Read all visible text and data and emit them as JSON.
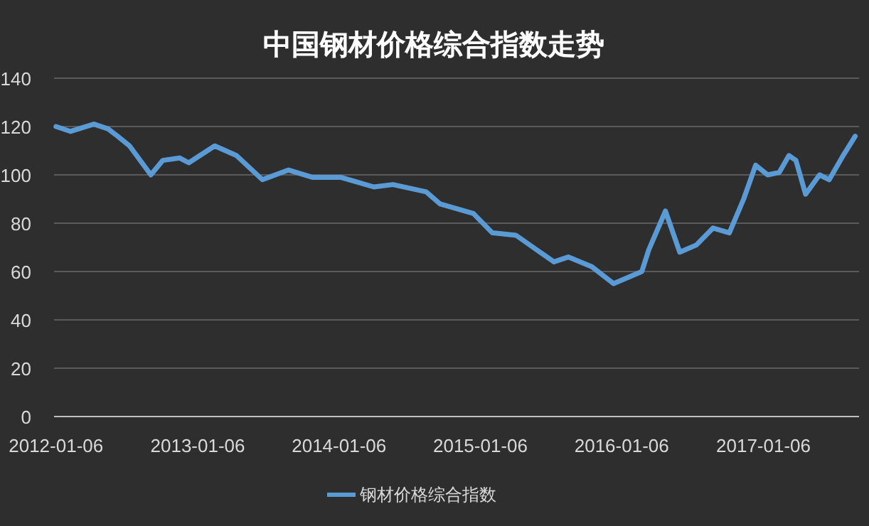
{
  "chart_data": {
    "type": "line",
    "title": "中国钢材价格综合指数走势",
    "x": [
      "2012-01-06",
      "2012-02-12",
      "2012-04-13",
      "2012-05-20",
      "2012-06-13",
      "2012-07-14",
      "2012-09-07",
      "2012-10-08",
      "2012-11-20",
      "2012-12-14",
      "2013-02-19",
      "2013-04-16",
      "2013-06-22",
      "2013-08-28",
      "2013-10-29",
      "2014-01-10",
      "2014-04-06",
      "2014-05-25",
      "2014-08-19",
      "2014-09-24",
      "2014-12-19",
      "2015-02-06",
      "2015-04-08",
      "2015-07-15",
      "2015-08-21",
      "2015-10-21",
      "2015-12-16",
      "2016-02-27",
      "2016-03-16",
      "2016-04-28",
      "2016-06-04",
      "2016-07-17",
      "2016-08-29",
      "2016-10-10",
      "2016-11-16",
      "2016-12-17",
      "2017-01-17",
      "2017-02-16",
      "2017-03-13",
      "2017-03-31",
      "2017-04-25",
      "2017-05-31",
      "2017-06-25",
      "2017-07-31",
      "2017-08-31"
    ],
    "series": [
      {
        "name": "钢材价格综合指数",
        "color": "#5b9bd5",
        "values": [
          120,
          118,
          121,
          119,
          116,
          112,
          100,
          106,
          107,
          105,
          112,
          108,
          98,
          102,
          99,
          99,
          95,
          96,
          93,
          88,
          84,
          76,
          75,
          64,
          66,
          62,
          55,
          60,
          69,
          85,
          68,
          71,
          78,
          76,
          90,
          104,
          100,
          101,
          108,
          106,
          92,
          100,
          98,
          108,
          116
        ]
      }
    ],
    "xlim": [
      "2012-01-01",
      "2017-09-10"
    ],
    "xticks": [
      "2012-01-06",
      "2013-01-06",
      "2014-01-06",
      "2015-01-06",
      "2016-01-06",
      "2017-01-06"
    ],
    "ylim": [
      0,
      140
    ],
    "yticks": [
      0,
      20,
      40,
      60,
      80,
      100,
      120,
      140
    ],
    "grid": "y",
    "legend": "bottom",
    "marker": "none",
    "line_style": "solid"
  }
}
